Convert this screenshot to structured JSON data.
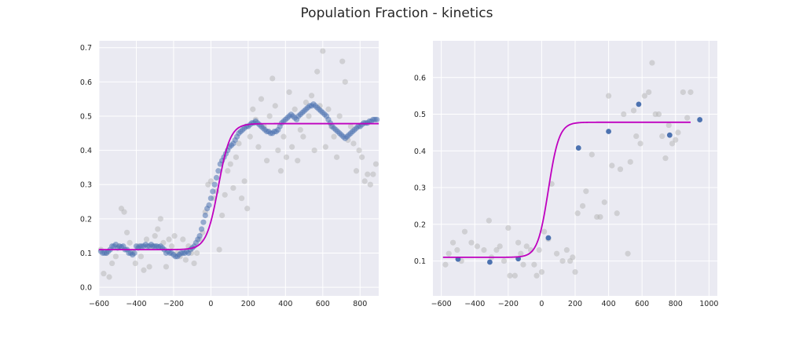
{
  "figure": {
    "title": "Population Fraction - kinetics",
    "colors": {
      "background": "#eaeaf2",
      "grid": "#ffffff",
      "fit": "#bf00bf",
      "raw": "#b3b3b3",
      "smoothed": "#4c72b0"
    }
  },
  "chart_data": [
    {
      "type": "scatter",
      "xlim": [
        -600,
        900
      ],
      "ylim": [
        -0.025,
        0.72
      ],
      "xticks": [
        -600,
        -400,
        -200,
        0,
        200,
        400,
        600,
        800
      ],
      "yticks": [
        0.0,
        0.1,
        0.2,
        0.3,
        0.4,
        0.5,
        0.6,
        0.7
      ],
      "xtick_labels": [
        "−600",
        "−400",
        "−200",
        "0",
        "200",
        "400",
        "600",
        "800"
      ],
      "ytick_labels": [
        "0.0",
        "0.1",
        "0.2",
        "0.3",
        "0.4",
        "0.5",
        "0.6",
        "0.7"
      ],
      "grid": true,
      "fit": {
        "baseline": 0.11,
        "plateau": 0.478,
        "x_min": -600,
        "x_max": 900
      },
      "series": [
        {
          "role": "raw",
          "x": [
            -590,
            -575,
            -560,
            -545,
            -530,
            -510,
            -495,
            -480,
            -465,
            -450,
            -435,
            -420,
            -405,
            -390,
            -375,
            -360,
            -345,
            -330,
            -315,
            -300,
            -285,
            -270,
            -255,
            -240,
            -225,
            -210,
            -195,
            -180,
            -165,
            -150,
            -135,
            -120,
            -105,
            -90,
            -75,
            -60,
            -45,
            -30,
            -15,
            0,
            15,
            30,
            45,
            60,
            75,
            90,
            105,
            120,
            135,
            150,
            165,
            180,
            195,
            210,
            225,
            240,
            255,
            270,
            285,
            300,
            315,
            330,
            345,
            360,
            375,
            390,
            405,
            420,
            435,
            450,
            465,
            480,
            495,
            510,
            525,
            540,
            555,
            570,
            585,
            600,
            615,
            630,
            645,
            660,
            675,
            690,
            705,
            720,
            735,
            750,
            765,
            780,
            795,
            810,
            825,
            840,
            855,
            870,
            885
          ],
          "y": [
            0.11,
            0.04,
            0.1,
            0.03,
            0.07,
            0.09,
            0.12,
            0.23,
            0.22,
            0.16,
            0.13,
            0.1,
            0.07,
            0.12,
            0.09,
            0.05,
            0.14,
            0.06,
            0.12,
            0.15,
            0.17,
            0.2,
            0.13,
            0.06,
            0.14,
            0.12,
            0.15,
            0.1,
            0.09,
            0.14,
            0.08,
            0.12,
            0.1,
            0.07,
            0.1,
            0.14,
            0.16,
            0.22,
            0.3,
            0.31,
            0.26,
            0.28,
            0.11,
            0.21,
            0.27,
            0.34,
            0.36,
            0.29,
            0.38,
            0.42,
            0.26,
            0.31,
            0.23,
            0.44,
            0.52,
            0.49,
            0.41,
            0.55,
            0.47,
            0.37,
            0.5,
            0.61,
            0.53,
            0.4,
            0.34,
            0.44,
            0.38,
            0.57,
            0.41,
            0.52,
            0.37,
            0.46,
            0.44,
            0.54,
            0.5,
            0.56,
            0.4,
            0.63,
            0.53,
            0.69,
            0.41,
            0.52,
            0.47,
            0.44,
            0.38,
            0.5,
            0.66,
            0.6,
            0.43,
            0.47,
            0.42,
            0.34,
            0.4,
            0.38,
            0.31,
            0.33,
            0.3,
            0.33,
            0.36
          ]
        },
        {
          "role": "smoothed",
          "x": [
            -590,
            -580,
            -570,
            -560,
            -550,
            -540,
            -530,
            -520,
            -510,
            -500,
            -490,
            -480,
            -470,
            -460,
            -450,
            -440,
            -430,
            -420,
            -410,
            -400,
            -390,
            -380,
            -370,
            -360,
            -350,
            -340,
            -330,
            -320,
            -310,
            -300,
            -290,
            -280,
            -270,
            -260,
            -250,
            -240,
            -230,
            -220,
            -210,
            -200,
            -190,
            -180,
            -170,
            -160,
            -150,
            -140,
            -130,
            -120,
            -110,
            -100,
            -90,
            -80,
            -70,
            -60,
            -50,
            -40,
            -30,
            -20,
            -10,
            0,
            10,
            20,
            30,
            40,
            50,
            60,
            70,
            80,
            90,
            100,
            110,
            120,
            130,
            140,
            150,
            160,
            170,
            180,
            190,
            200,
            210,
            220,
            230,
            240,
            250,
            260,
            270,
            280,
            290,
            300,
            310,
            320,
            330,
            340,
            350,
            360,
            370,
            380,
            390,
            400,
            410,
            420,
            430,
            440,
            450,
            460,
            470,
            480,
            490,
            500,
            510,
            520,
            530,
            540,
            550,
            560,
            570,
            580,
            590,
            600,
            610,
            620,
            630,
            640,
            650,
            660,
            670,
            680,
            690,
            700,
            710,
            720,
            730,
            740,
            750,
            760,
            770,
            780,
            790,
            800,
            810,
            820,
            830,
            840,
            850,
            860,
            870,
            880,
            890
          ],
          "y": [
            0.105,
            0.1,
            0.1,
            0.1,
            0.105,
            0.11,
            0.12,
            0.12,
            0.125,
            0.115,
            0.12,
            0.118,
            0.12,
            0.11,
            0.11,
            0.1,
            0.1,
            0.095,
            0.1,
            0.12,
            0.115,
            0.12,
            0.12,
            0.12,
            0.125,
            0.12,
            0.12,
            0.125,
            0.12,
            0.12,
            0.12,
            0.118,
            0.12,
            0.115,
            0.11,
            0.1,
            0.105,
            0.1,
            0.1,
            0.095,
            0.09,
            0.09,
            0.095,
            0.1,
            0.1,
            0.1,
            0.105,
            0.1,
            0.11,
            0.115,
            0.12,
            0.13,
            0.14,
            0.15,
            0.17,
            0.19,
            0.21,
            0.23,
            0.24,
            0.26,
            0.28,
            0.3,
            0.32,
            0.34,
            0.36,
            0.37,
            0.38,
            0.39,
            0.4,
            0.41,
            0.415,
            0.42,
            0.43,
            0.44,
            0.45,
            0.455,
            0.46,
            0.465,
            0.47,
            0.47,
            0.475,
            0.48,
            0.48,
            0.485,
            0.48,
            0.475,
            0.47,
            0.465,
            0.46,
            0.455,
            0.455,
            0.45,
            0.45,
            0.455,
            0.455,
            0.46,
            0.47,
            0.48,
            0.485,
            0.49,
            0.495,
            0.5,
            0.505,
            0.5,
            0.495,
            0.49,
            0.5,
            0.505,
            0.51,
            0.515,
            0.52,
            0.525,
            0.53,
            0.53,
            0.535,
            0.53,
            0.525,
            0.52,
            0.515,
            0.51,
            0.505,
            0.5,
            0.49,
            0.48,
            0.47,
            0.465,
            0.46,
            0.455,
            0.45,
            0.445,
            0.44,
            0.435,
            0.44,
            0.445,
            0.45,
            0.455,
            0.46,
            0.465,
            0.47,
            0.47,
            0.475,
            0.48,
            0.48,
            0.48,
            0.485,
            0.485,
            0.49,
            0.49,
            0.49
          ]
        }
      ]
    },
    {
      "type": "scatter",
      "xlim": [
        -650,
        1050
      ],
      "ylim": [
        0.005,
        0.7
      ],
      "xticks": [
        -600,
        -400,
        -200,
        0,
        200,
        400,
        600,
        800,
        1000
      ],
      "yticks": [
        0.1,
        0.2,
        0.3,
        0.4,
        0.5,
        0.6
      ],
      "xtick_labels": [
        "−600",
        "−400",
        "−200",
        "0",
        "200",
        "400",
        "600",
        "800",
        "1000"
      ],
      "ytick_labels": [
        "0.1",
        "0.2",
        "0.3",
        "0.4",
        "0.5",
        "0.6"
      ],
      "grid": true,
      "fit": {
        "baseline": 0.11,
        "plateau": 0.478,
        "x_min": -590,
        "x_max": 890
      },
      "series": [
        {
          "role": "raw",
          "x": [
            -575,
            -555,
            -530,
            -505,
            -480,
            -460,
            -420,
            -385,
            -345,
            -315,
            -300,
            -270,
            -250,
            -225,
            -200,
            -190,
            -160,
            -140,
            -125,
            -110,
            -90,
            -65,
            -45,
            -30,
            -15,
            0,
            15,
            40,
            60,
            90,
            125,
            150,
            170,
            185,
            200,
            215,
            245,
            265,
            300,
            330,
            350,
            375,
            400,
            420,
            450,
            470,
            490,
            515,
            530,
            550,
            565,
            590,
            615,
            640,
            660,
            680,
            700,
            720,
            740,
            760,
            780,
            800,
            815,
            845,
            870,
            890
          ],
          "y": [
            0.09,
            0.12,
            0.15,
            0.13,
            0.1,
            0.18,
            0.15,
            0.14,
            0.13,
            0.21,
            0.11,
            0.13,
            0.14,
            0.1,
            0.19,
            0.06,
            0.06,
            0.15,
            0.12,
            0.09,
            0.14,
            0.13,
            0.09,
            0.06,
            0.13,
            0.07,
            0.18,
            0.16,
            0.31,
            0.12,
            0.1,
            0.13,
            0.1,
            0.11,
            0.07,
            0.23,
            0.25,
            0.29,
            0.39,
            0.22,
            0.22,
            0.26,
            0.55,
            0.36,
            0.23,
            0.35,
            0.5,
            0.12,
            0.37,
            0.51,
            0.44,
            0.42,
            0.55,
            0.56,
            0.64,
            0.5,
            0.5,
            0.44,
            0.38,
            0.47,
            0.42,
            0.43,
            0.45,
            0.56,
            0.49,
            0.56
          ],
          "y_note": "approximate"
        },
        {
          "role": "smoothed",
          "x": [
            -500,
            -310,
            -140,
            40,
            220,
            400,
            580,
            765,
            945
          ],
          "y": [
            0.105,
            0.097,
            0.106,
            0.163,
            0.408,
            0.453,
            0.527,
            0.443,
            0.485
          ]
        }
      ]
    }
  ]
}
